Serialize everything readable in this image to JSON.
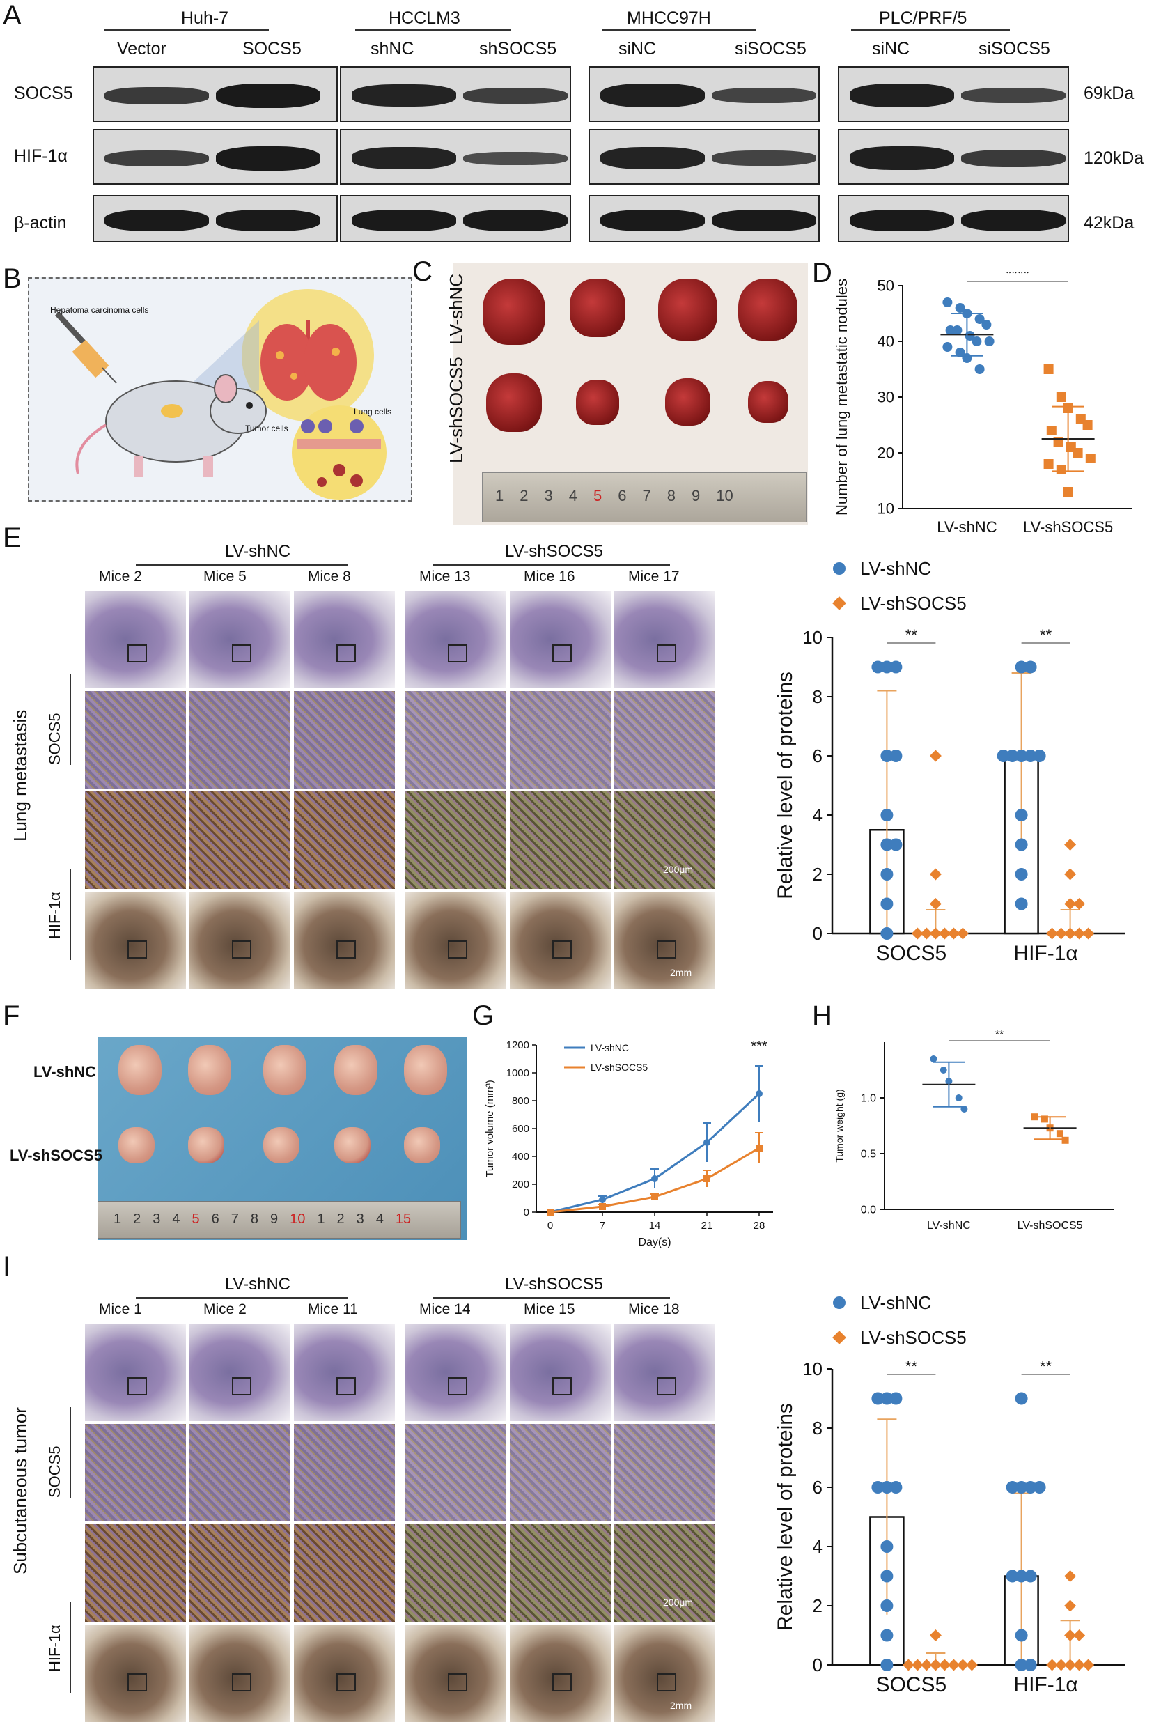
{
  "panels": {
    "A": "A",
    "B": "B",
    "C": "C",
    "D": "D",
    "E": "E",
    "F": "F",
    "G": "G",
    "H": "H",
    "I": "I"
  },
  "panel_a": {
    "groups": [
      {
        "name": "Huh-7",
        "lanes": [
          "Vector",
          "SOCS5"
        ]
      },
      {
        "name": "HCCLM3",
        "lanes": [
          "shNC",
          "shSOCS5"
        ]
      },
      {
        "name": "MHCC97H",
        "lanes": [
          "siNC",
          "siSOCS5"
        ]
      },
      {
        "name": "PLC/PRF/5",
        "lanes": [
          "siNC",
          "siSOCS5"
        ]
      }
    ],
    "rows": [
      {
        "protein": "SOCS5",
        "size": "69kDa"
      },
      {
        "protein": "HIF-1α",
        "size": "120kDa"
      },
      {
        "protein": "β-actin",
        "size": "42kDa"
      }
    ]
  },
  "panel_b": {
    "injection_label": "Hepatoma carcinoma cells",
    "tumor_label": "Tumor cells",
    "lung_label": "Lung cells"
  },
  "panel_c": {
    "row_labels": [
      "LV-shNC",
      "LV-shSOCS5"
    ],
    "ruler": [
      "1",
      "2",
      "3",
      "4",
      "5",
      "6",
      "7",
      "8",
      "9",
      "10"
    ]
  },
  "panel_f": {
    "row_labels": [
      "LV-shNC",
      "LV-shSOCS5"
    ],
    "ruler": [
      "1",
      "2",
      "3",
      "4",
      "5",
      "6",
      "7",
      "8",
      "9",
      "10",
      "1",
      "2",
      "3",
      "4",
      "15"
    ]
  },
  "panel_e": {
    "group_labels": [
      "LV-shNC",
      "LV-shSOCS5"
    ],
    "mice": [
      "Mice 2",
      "Mice 5",
      "Mice 8",
      "Mice 13",
      "Mice 16",
      "Mice 17"
    ],
    "side_label": "Lung metastasis",
    "stain_labels": [
      "SOCS5",
      "HIF-1α"
    ],
    "scale_small": "200μm",
    "scale_large": "2mm"
  },
  "panel_i": {
    "group_labels": [
      "LV-shNC",
      "LV-shSOCS5"
    ],
    "mice": [
      "Mice 1",
      "Mice 2",
      "Mice 11",
      "Mice 14",
      "Mice 15",
      "Mice 18"
    ],
    "side_label": "Subcutaneous tumor",
    "stain_labels": [
      "SOCS5",
      "HIF-1α"
    ],
    "scale_small": "200μm",
    "scale_large": "2mm"
  },
  "chart_data": [
    {
      "id": "D",
      "type": "scatter",
      "ylabel": "Number of lung metastatic nodules",
      "ylim": [
        10,
        50
      ],
      "yticks": [
        "10",
        "20",
        "30",
        "40",
        "50"
      ],
      "categories": [
        "LV-shNC",
        "LV-shSOCS5"
      ],
      "series": [
        {
          "name": "LV-shNC",
          "color": "#3f7dbd",
          "marker": "circle",
          "mean": 41.2,
          "sd": 3.8,
          "values": [
            47,
            46,
            45,
            44,
            43,
            42,
            42,
            41,
            40,
            40,
            39,
            38,
            37,
            35
          ]
        },
        {
          "name": "LV-shSOCS5",
          "color": "#e8822e",
          "marker": "square",
          "mean": 22.5,
          "sd": 5.8,
          "values": [
            35,
            30,
            28,
            26,
            25,
            24,
            22,
            21,
            20,
            19,
            18,
            17,
            13
          ]
        }
      ],
      "significance": "****"
    },
    {
      "id": "E",
      "type": "bar",
      "ylabel": "Relative level of proteins",
      "ylim": [
        0,
        10
      ],
      "yticks": [
        "0",
        "2",
        "4",
        "6",
        "8",
        "10"
      ],
      "categories": [
        "SOCS5",
        "HIF-1α"
      ],
      "series": [
        {
          "name": "LV-shNC",
          "color": "#3f7dbd",
          "marker": "circle",
          "means": [
            3.5,
            6.0
          ],
          "sd": [
            4.7,
            2.8
          ],
          "points": [
            [
              9,
              9,
              9,
              6,
              6,
              4,
              3,
              3,
              2,
              1,
              0
            ],
            [
              9,
              9,
              6,
              6,
              6,
              6,
              6,
              4,
              3,
              2,
              1
            ]
          ]
        },
        {
          "name": "LV-shSOCS5",
          "color": "#e8822e",
          "marker": "diamond",
          "means": [
            0,
            0
          ],
          "sd": [
            0.8,
            0.8
          ],
          "points": [
            [
              6,
              2,
              1,
              0,
              0,
              0,
              0,
              0,
              0
            ],
            [
              3,
              2,
              1,
              1,
              0,
              0,
              0,
              0,
              0
            ]
          ]
        }
      ],
      "significance": [
        "**",
        "**"
      ]
    },
    {
      "id": "G",
      "type": "line",
      "xlabel": "Day(s)",
      "ylabel": "Tumor volume (mm³)",
      "x": [
        0,
        7,
        14,
        21,
        28
      ],
      "xticks": [
        "0",
        "7",
        "14",
        "21",
        "28"
      ],
      "ylim": [
        0,
        1200
      ],
      "yticks": [
        "0",
        "200",
        "400",
        "600",
        "800",
        "1000",
        "1200"
      ],
      "series": [
        {
          "name": "LV-shNC",
          "color": "#3f7dbd",
          "values": [
            0,
            90,
            240,
            500,
            850
          ],
          "err": [
            0,
            25,
            70,
            140,
            200
          ]
        },
        {
          "name": "LV-shSOCS5",
          "color": "#e8822e",
          "values": [
            0,
            40,
            110,
            240,
            460
          ],
          "err": [
            0,
            15,
            20,
            60,
            110
          ]
        }
      ],
      "significance": "***"
    },
    {
      "id": "H",
      "type": "scatter",
      "ylabel": "Tumor weight (g)",
      "ylim": [
        0,
        1.5
      ],
      "yticks": [
        "0.0",
        "0.5",
        "1.0"
      ],
      "categories": [
        "LV-shNC",
        "LV-shSOCS5"
      ],
      "series": [
        {
          "name": "LV-shNC",
          "color": "#3f7dbd",
          "marker": "circle",
          "mean": 1.12,
          "sd": 0.2,
          "values": [
            1.35,
            1.25,
            1.15,
            1.0,
            0.9
          ]
        },
        {
          "name": "LV-shSOCS5",
          "color": "#e8822e",
          "marker": "square",
          "mean": 0.73,
          "sd": 0.1,
          "values": [
            0.83,
            0.81,
            0.73,
            0.68,
            0.62
          ]
        }
      ],
      "significance": "**"
    },
    {
      "id": "I",
      "type": "bar",
      "ylabel": "Relative level of proteins",
      "ylim": [
        0,
        10
      ],
      "yticks": [
        "0",
        "2",
        "4",
        "6",
        "8",
        "10"
      ],
      "categories": [
        "SOCS5",
        "HIF-1α"
      ],
      "series": [
        {
          "name": "LV-shNC",
          "color": "#3f7dbd",
          "marker": "circle",
          "means": [
            5.0,
            3.0
          ],
          "sd": [
            3.3,
            2.8
          ],
          "points": [
            [
              9,
              9,
              9,
              6,
              6,
              6,
              4,
              3,
              2,
              1,
              0
            ],
            [
              9,
              6,
              6,
              6,
              6,
              3,
              3,
              3,
              1,
              0,
              0
            ]
          ]
        },
        {
          "name": "LV-shSOCS5",
          "color": "#e8822e",
          "marker": "diamond",
          "means": [
            0,
            0
          ],
          "sd": [
            0.4,
            1.5
          ],
          "points": [
            [
              1,
              0,
              0,
              0,
              0,
              0,
              0,
              0,
              0
            ],
            [
              3,
              2,
              1,
              1,
              0,
              0,
              0,
              0,
              0
            ]
          ]
        }
      ],
      "significance": [
        "**",
        "**"
      ]
    }
  ]
}
